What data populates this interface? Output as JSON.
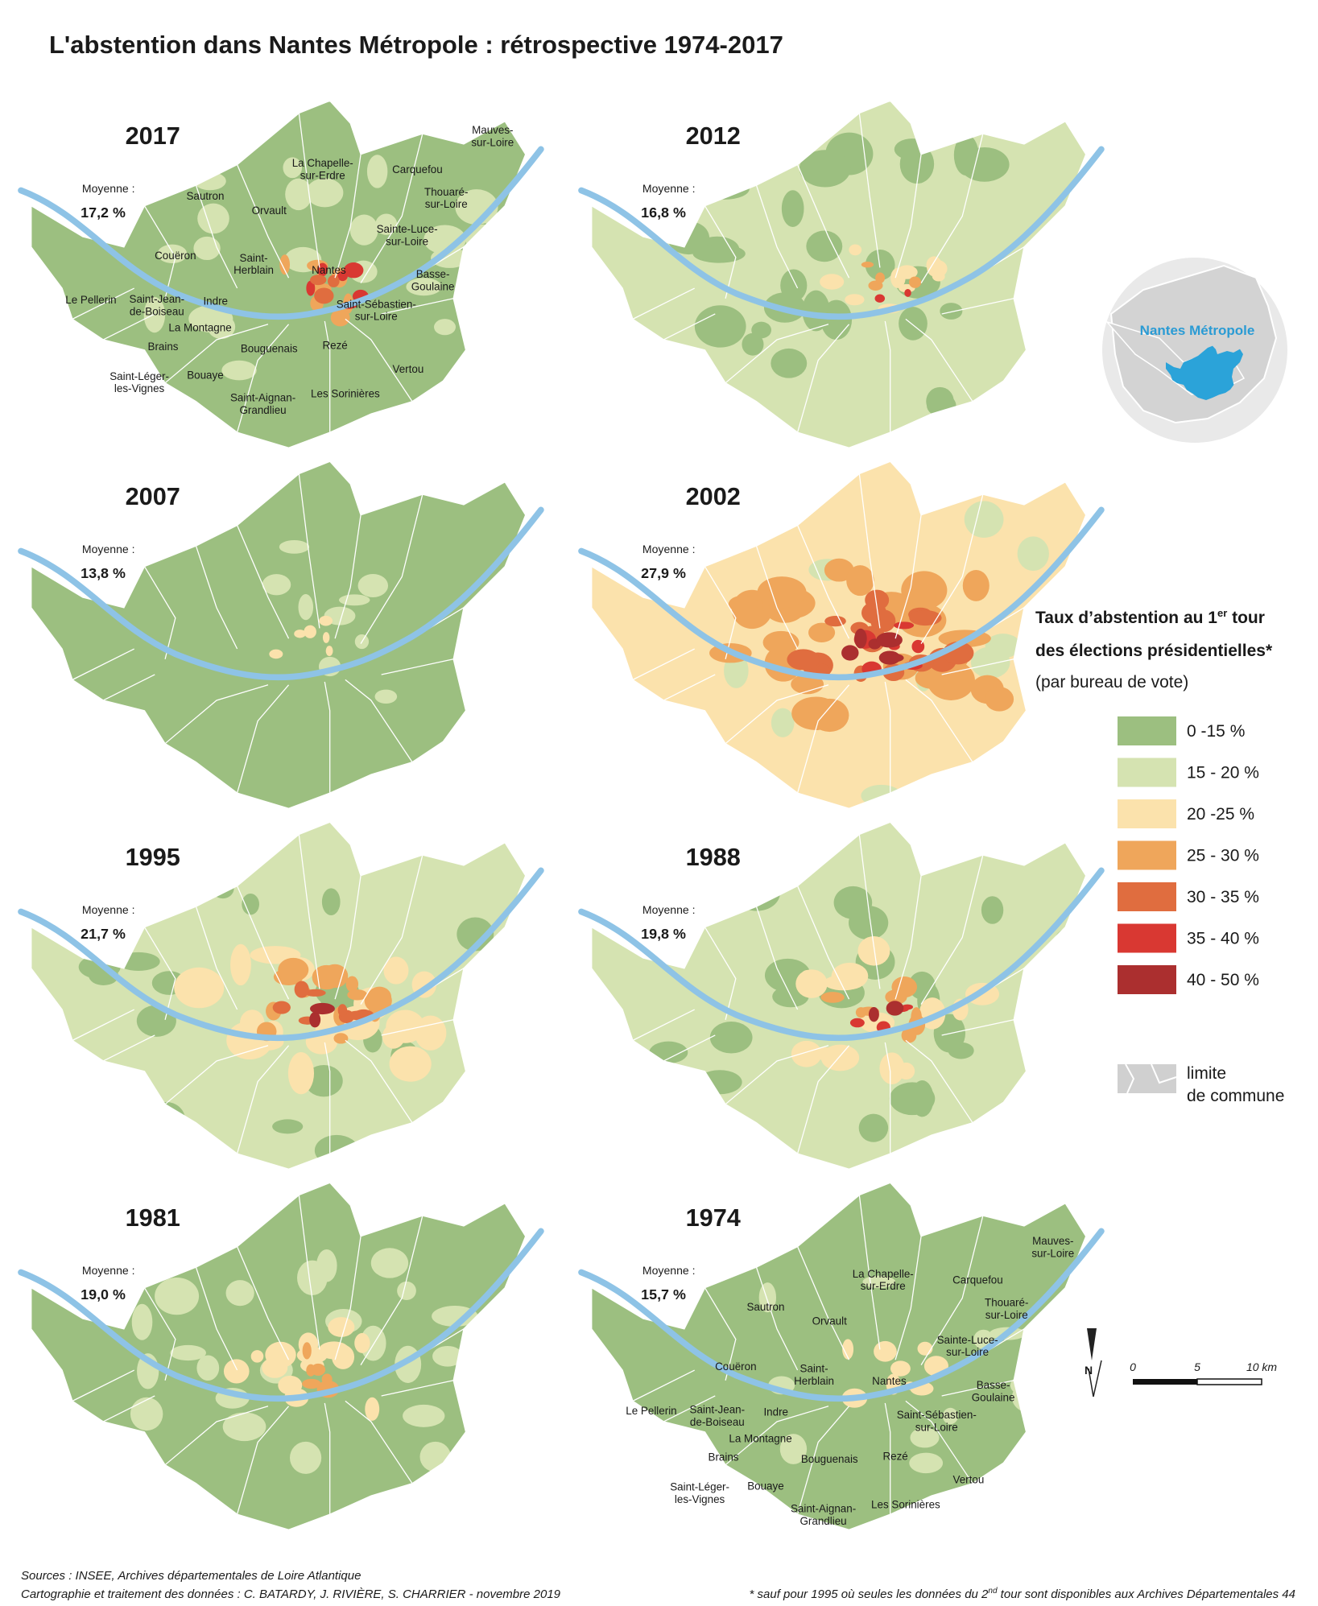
{
  "title": "L'abstention dans Nantes Métropole : rétrospective 1974-2017",
  "mean_label": "Moyenne :",
  "maps": [
    {
      "year": "2017",
      "mean": "17,2 %"
    },
    {
      "year": "2012",
      "mean": "16,8 %"
    },
    {
      "year": "2007",
      "mean": "13,8 %"
    },
    {
      "year": "2002",
      "mean": "27,9 %"
    },
    {
      "year": "1995",
      "mean": "21,7 %"
    },
    {
      "year": "1988",
      "mean": "19,8 %"
    },
    {
      "year": "1981",
      "mean": "19,0 %"
    },
    {
      "year": "1974",
      "mean": "15,7 %"
    }
  ],
  "communes": [
    [
      "Mauves-",
      "sur-Loire"
    ],
    [
      "La Chapelle-",
      "sur-Erdre"
    ],
    [
      "Carquefou"
    ],
    [
      "Sautron"
    ],
    [
      "Orvault"
    ],
    [
      "Thouaré-",
      "sur-Loire"
    ],
    [
      "Sainte-Luce-",
      "sur-Loire"
    ],
    [
      "Couëron"
    ],
    [
      "Saint-",
      "Herblain"
    ],
    [
      "Nantes"
    ],
    [
      "Basse-",
      "Goulaine"
    ],
    [
      "Le Pellerin"
    ],
    [
      "Saint-Jean-",
      "de-Boiseau"
    ],
    [
      "Indre"
    ],
    [
      "Saint-Sébastien-",
      "sur-Loire"
    ],
    [
      "La Montagne"
    ],
    [
      "Brains"
    ],
    [
      "Bouguenais"
    ],
    [
      "Rezé"
    ],
    [
      "Vertou"
    ],
    [
      "Saint-Léger-",
      "les-Vignes"
    ],
    [
      "Bouaye"
    ],
    [
      "Saint-Aignan-",
      "Grandlieu"
    ],
    [
      "Les Sorinières"
    ]
  ],
  "inset_label": "Nantes Métropole",
  "legend": {
    "title": {
      "line1": "Taux d’abstention au 1",
      "sup": "er",
      "line1_end": " tour",
      "line2": "des élections présidentielles*",
      "line3": "(par bureau de vote)"
    },
    "items": [
      {
        "label": "0 -15 %",
        "color": "#9cbf80"
      },
      {
        "label": "15 - 20 %",
        "color": "#d5e3b1"
      },
      {
        "label": "20 -25 %",
        "color": "#fbe2ac"
      },
      {
        "label": "25 - 30 %",
        "color": "#efa65b"
      },
      {
        "label": "30 - 35 %",
        "color": "#e06d3f"
      },
      {
        "label": "35 - 40 %",
        "color": "#d93832"
      },
      {
        "label": "40 - 50 %",
        "color": "#ab2f2f"
      }
    ],
    "boundary_label": [
      "limite",
      "de commune"
    ]
  },
  "scale": {
    "north": "N",
    "labels": [
      "0",
      "5",
      "10 km"
    ]
  },
  "sources": [
    "Sources : INSEE, Archives départementales de Loire Atlantique",
    "Cartographie et traitement des données  : C. BATARDY, J. RIVIÈRE, S. CHARRIER - novembre 2019"
  ],
  "footnote": {
    "start": "* sauf pour 1995 où seules les données du 2",
    "sup": "nd",
    "end": " tour sont disponibles aux Archives Départementales 44"
  }
}
